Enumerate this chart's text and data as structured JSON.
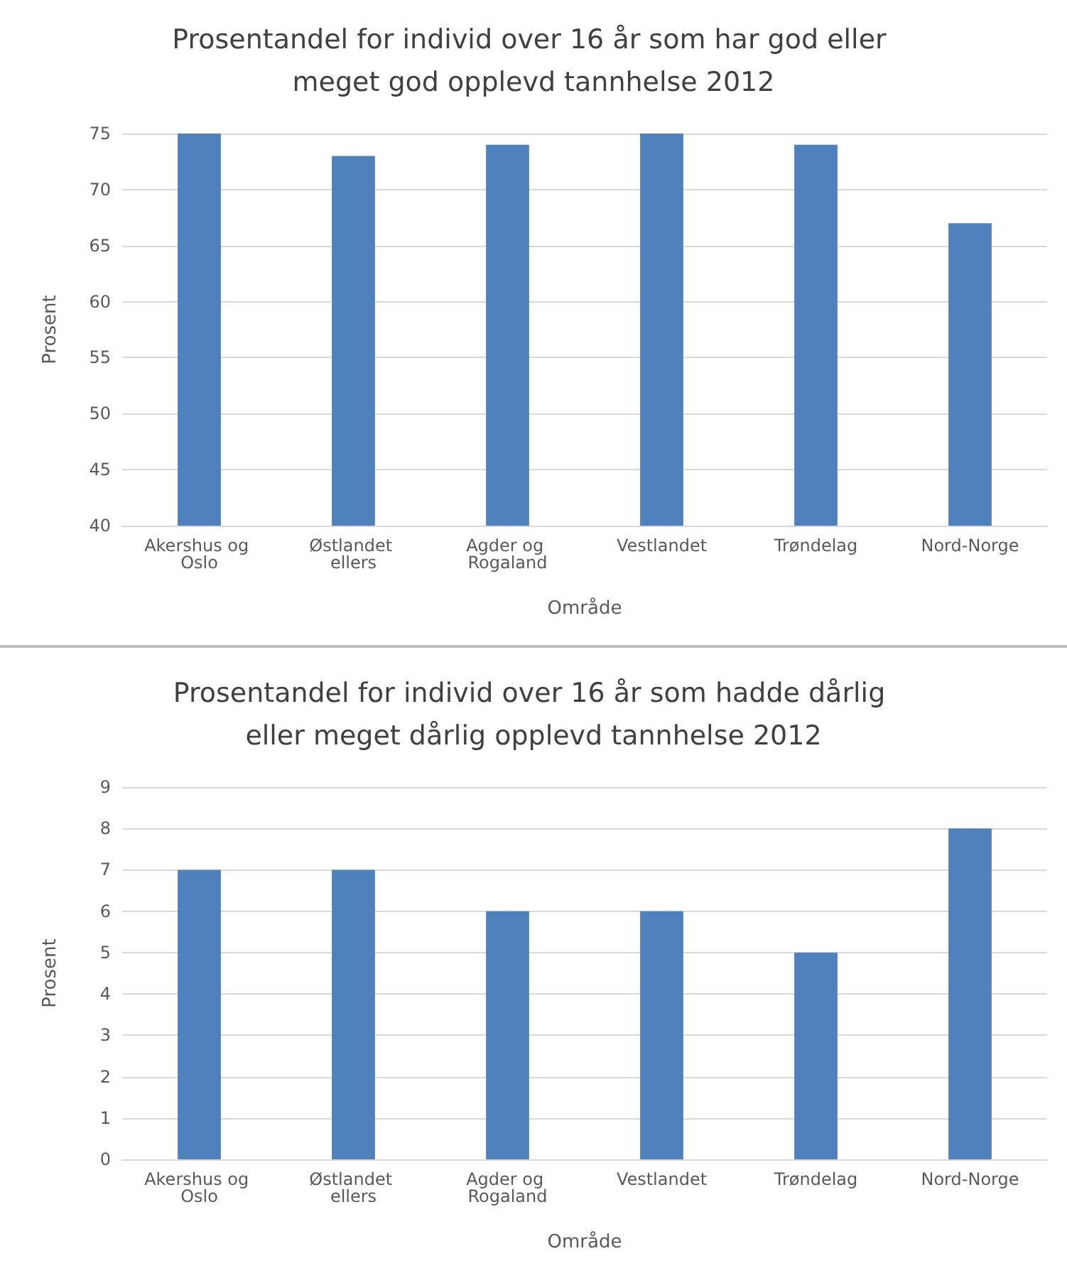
{
  "chart_data": [
    {
      "type": "bar",
      "title": "Prosentandel for individ over 16 år som har god eller meget god opplevd tannhelse 2012",
      "xlabel": "Område",
      "ylabel": "Prosent",
      "categories": [
        "Akershus og Oslo",
        "Østlandet ellers",
        "Agder og Rogaland",
        "Vestlandet",
        "Trøndelag",
        "Nord-Norge"
      ],
      "values": [
        75,
        73,
        74,
        75,
        74,
        67
      ],
      "color": "#4f81bd",
      "ylim": [
        40,
        75
      ],
      "yticks": [
        40,
        45,
        50,
        55,
        60,
        65,
        70,
        75
      ],
      "grid": "y"
    },
    {
      "type": "bar",
      "title": "Prosentandel for individ over 16 år som hadde dårlig eller meget dårlig opplevd tannhelse 2012",
      "xlabel": "Område",
      "ylabel": "Prosent",
      "categories": [
        "Akershus og Oslo",
        "Østlandet ellers",
        "Agder og Rogaland",
        "Vestlandet",
        "Trøndelag",
        "Nord-Norge"
      ],
      "values": [
        7,
        7,
        6,
        6,
        5,
        8
      ],
      "color": "#4f81bd",
      "ylim": [
        0,
        9
      ],
      "yticks": [
        0,
        1,
        2,
        3,
        4,
        5,
        6,
        7,
        8,
        9
      ],
      "grid": "y"
    }
  ]
}
